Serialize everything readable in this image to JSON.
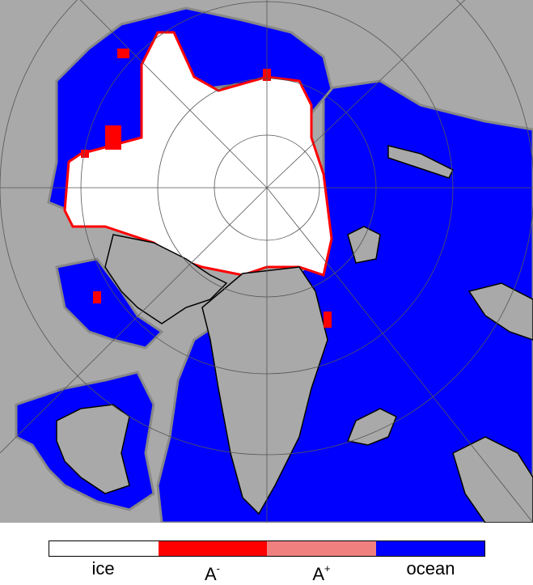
{
  "legend": {
    "items": [
      {
        "label": "ice",
        "color": "#ffffff"
      },
      {
        "label": "A",
        "superscript": "-",
        "color": "#ff0000"
      },
      {
        "label": "A",
        "superscript": "+",
        "color": "#f08080"
      },
      {
        "label": "ocean",
        "color": "#0000ff"
      }
    ]
  }
}
